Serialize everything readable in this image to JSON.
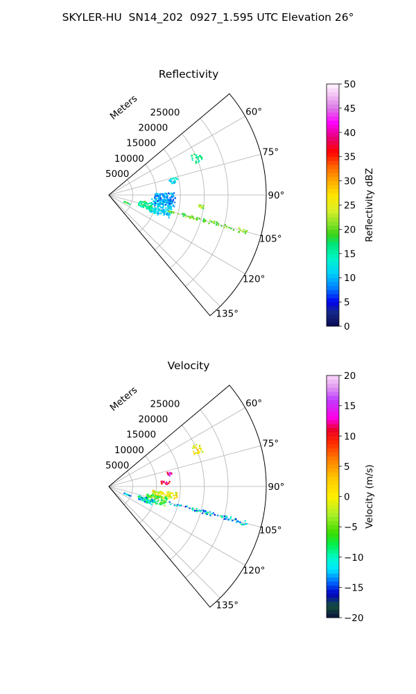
{
  "suptitle": "SKYLER-HU  SN14_202  0927_1.595 UTC Elevation 26°",
  "chart_data": [
    {
      "type": "polar-sector",
      "title": "Reflectivity",
      "r_axis_label": "Meters",
      "r_ticks": [
        5000,
        10000,
        15000,
        20000,
        25000
      ],
      "r_tick_labels": [
        "5000",
        "10000",
        "15000",
        "20000",
        "25000"
      ],
      "r_max": 33000,
      "theta_ticks": [
        60,
        75,
        90,
        105,
        120,
        135
      ],
      "theta_tick_labels": [
        "60°",
        "75°",
        "90°",
        "105°",
        "120°",
        "135°"
      ],
      "theta_range": [
        50,
        140
      ],
      "grid": true,
      "colorbar": {
        "label": "Reflectivity dBZ",
        "range": [
          0,
          50
        ],
        "ticks": [
          0,
          5,
          10,
          15,
          20,
          25,
          30,
          35,
          40,
          45,
          50
        ],
        "tick_labels": [
          "0",
          "5",
          "10",
          "15",
          "20",
          "25",
          "30",
          "35",
          "40",
          "45",
          "50"
        ],
        "colormap": "pyart_HomeyerRainbow"
      },
      "regions": [
        {
          "az": [
            95,
            112
          ],
          "r": [
            9000,
            13500
          ],
          "value": 11
        },
        {
          "az": [
            100,
            110
          ],
          "r": [
            6500,
            9500
          ],
          "value": 16
        },
        {
          "az": [
            104,
            106
          ],
          "r": [
            13000,
            30000
          ],
          "value": 20
        },
        {
          "az": [
            113,
            114
          ],
          "r": [
            3500,
            5000
          ],
          "value": 19
        },
        {
          "az": [
            88,
            100
          ],
          "r": [
            9500,
            14000
          ],
          "value": 9
        },
        {
          "az": [
            75,
            80
          ],
          "r": [
            13000,
            15000
          ],
          "value": 12
        },
        {
          "az": [
            64,
            70
          ],
          "r": [
            19000,
            21000
          ],
          "value": 16
        },
        {
          "az": [
            96,
            98
          ],
          "r": [
            19000,
            20000
          ],
          "value": 21
        }
      ]
    },
    {
      "type": "polar-sector",
      "title": "Velocity",
      "r_axis_label": "Meters",
      "r_ticks": [
        5000,
        10000,
        15000,
        20000,
        25000
      ],
      "r_tick_labels": [
        "5000",
        "10000",
        "15000",
        "20000",
        "25000"
      ],
      "r_max": 33000,
      "theta_ticks": [
        60,
        75,
        90,
        105,
        120,
        135
      ],
      "theta_tick_labels": [
        "60°",
        "75°",
        "90°",
        "105°",
        "120°",
        "135°"
      ],
      "theta_range": [
        50,
        140
      ],
      "grid": true,
      "colorbar": {
        "label": "Velocity (m/s)",
        "range": [
          -20,
          20
        ],
        "ticks": [
          -20,
          -15,
          -10,
          -5,
          0,
          5,
          10,
          15,
          20
        ],
        "tick_labels": [
          "−20",
          "−15",
          "−10",
          "−5",
          "0",
          "5",
          "10",
          "15",
          "20"
        ],
        "colormap": "pyart_BuDRd18"
      },
      "regions": [
        {
          "az": [
            95,
            102
          ],
          "r": [
            9000,
            14500
          ],
          "value": 0
        },
        {
          "az": [
            100,
            110
          ],
          "r": [
            8000,
            12500
          ],
          "value": -7
        },
        {
          "az": [
            106,
            113
          ],
          "r": [
            6500,
            10000
          ],
          "value": -11
        },
        {
          "az": [
            104,
            106
          ],
          "r": [
            13000,
            30000
          ],
          "value": -12
        },
        {
          "az": [
            113,
            114
          ],
          "r": [
            3500,
            5000
          ],
          "value": -13
        },
        {
          "az": [
            76,
            80
          ],
          "r": [
            12500,
            13500
          ],
          "value": 14
        },
        {
          "az": [
            64,
            70
          ],
          "r": [
            19000,
            21000
          ],
          "value": 1
        },
        {
          "az": [
            84,
            88
          ],
          "r": [
            11000,
            13000
          ],
          "value": 10
        }
      ]
    }
  ]
}
